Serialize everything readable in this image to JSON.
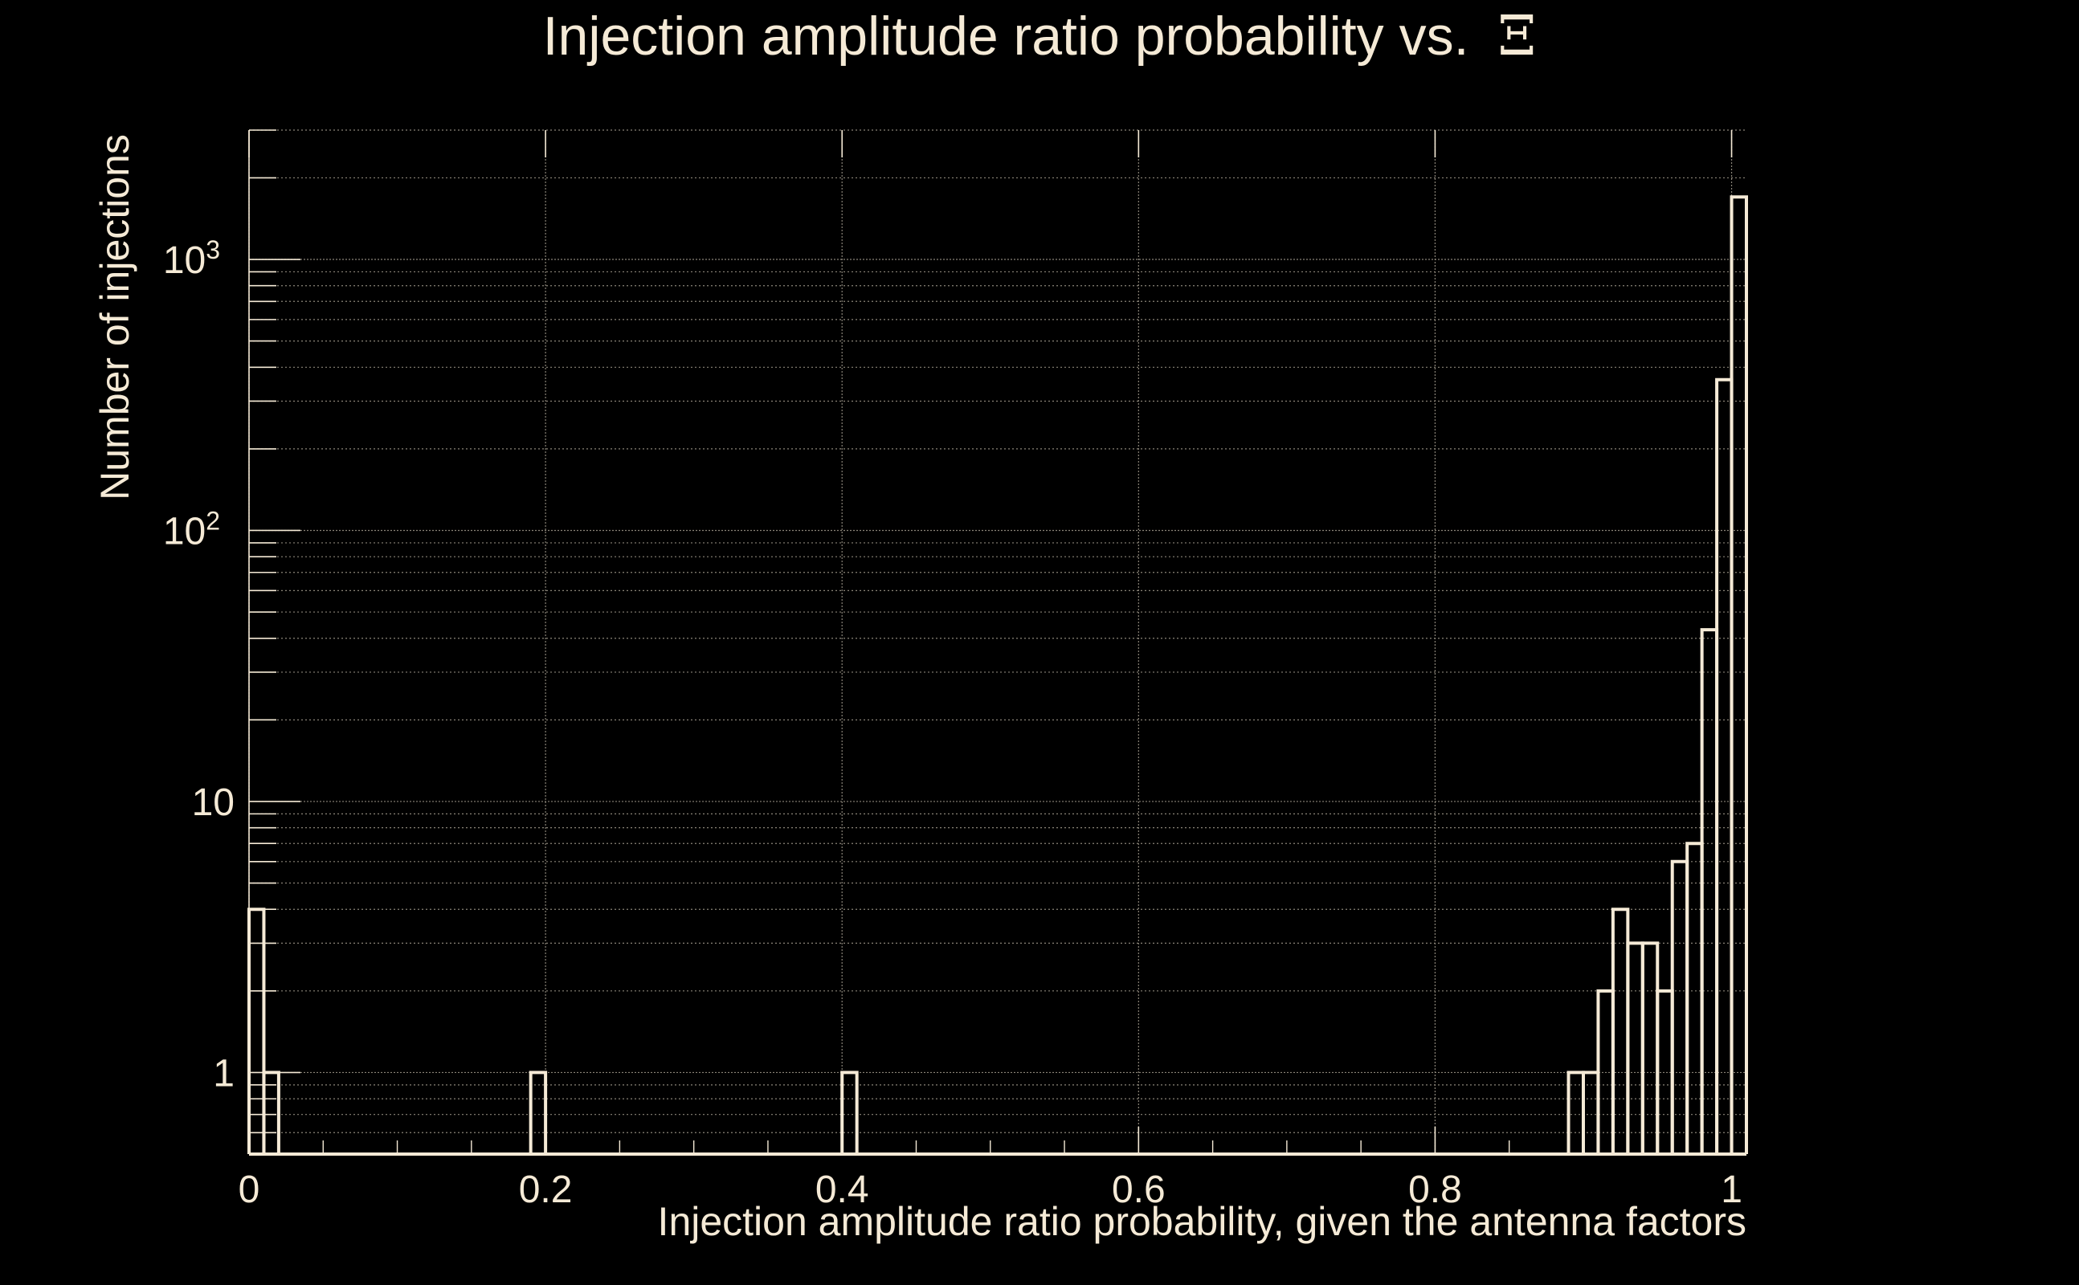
{
  "chart_data": {
    "type": "bar",
    "title": "Injection amplitude ratio probability vs.",
    "title_symbol": "Ξ",
    "xlabel": "Injection amplitude ratio probability, given the antenna factors",
    "ylabel": "Number of injections",
    "xlim": [
      0,
      1.01
    ],
    "ylim": [
      0.5,
      3000
    ],
    "y_scale": "log",
    "grid": true,
    "x_ticks": [
      {
        "value": 0,
        "label": "0"
      },
      {
        "value": 0.2,
        "label": "0.2"
      },
      {
        "value": 0.4,
        "label": "0.4"
      },
      {
        "value": 0.6,
        "label": "0.6"
      },
      {
        "value": 0.8,
        "label": "0.8"
      },
      {
        "value": 1,
        "label": "1"
      }
    ],
    "y_ticks": [
      {
        "value": 1,
        "base": "1",
        "exp": ""
      },
      {
        "value": 10,
        "base": "10",
        "exp": ""
      },
      {
        "value": 100,
        "base": "10",
        "exp": "2"
      },
      {
        "value": 1000,
        "base": "10",
        "exp": "3"
      }
    ],
    "bin_width": 0.01,
    "bins": [
      {
        "x": 0.0,
        "count": 4
      },
      {
        "x": 0.01,
        "count": 1
      },
      {
        "x": 0.19,
        "count": 1
      },
      {
        "x": 0.4,
        "count": 1
      },
      {
        "x": 0.89,
        "count": 1
      },
      {
        "x": 0.9,
        "count": 1
      },
      {
        "x": 0.91,
        "count": 2
      },
      {
        "x": 0.92,
        "count": 4
      },
      {
        "x": 0.93,
        "count": 3
      },
      {
        "x": 0.94,
        "count": 3
      },
      {
        "x": 0.95,
        "count": 2
      },
      {
        "x": 0.96,
        "count": 6
      },
      {
        "x": 0.97,
        "count": 7
      },
      {
        "x": 0.98,
        "count": 43
      },
      {
        "x": 0.99,
        "count": 360
      },
      {
        "x": 1.0,
        "count": 1700
      }
    ],
    "line_color": "#f5ead6",
    "grid_color": "#8a8478",
    "background": "#000000"
  }
}
